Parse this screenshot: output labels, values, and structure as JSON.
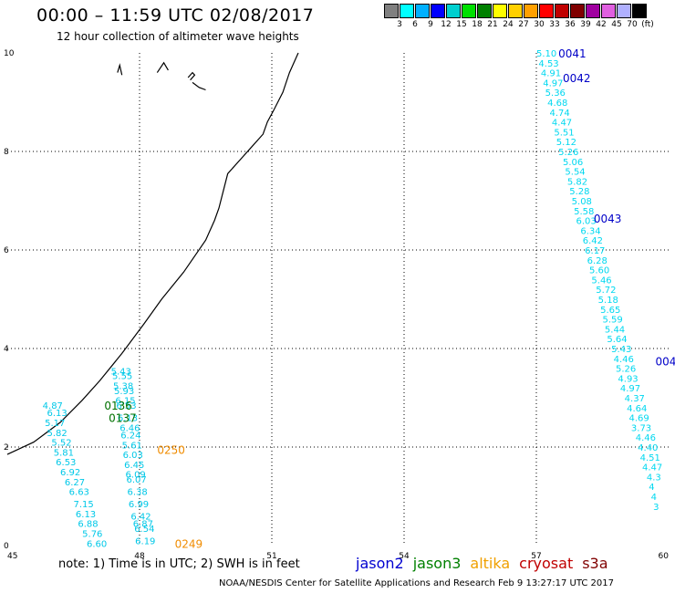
{
  "header": {
    "title": "00:00 – 11:59 UTC 02/08/2017",
    "subtitle": "12 hour collection of altimeter wave heights"
  },
  "legend": {
    "colors": [
      "#808080",
      "#00ffff",
      "#00b0ff",
      "#0000ff",
      "#00d0d0",
      "#00e000",
      "#008000",
      "#ffff00",
      "#ffd000",
      "#ffa000",
      "#ff0000",
      "#c00000",
      "#800000",
      "#a000a0",
      "#e060e0",
      "#b0b0ff",
      "#000000"
    ],
    "labels": [
      "3",
      "6",
      "9",
      "12",
      "15",
      "18",
      "21",
      "24",
      "27",
      "30",
      "33",
      "36",
      "39",
      "42",
      "45",
      "70",
      "(ft)"
    ]
  },
  "axes": {
    "x_ticks": [
      "45",
      "48",
      "51",
      "54",
      "57",
      "60"
    ],
    "y_ticks": [
      "0",
      "2",
      "4",
      "6",
      "8",
      "10"
    ]
  },
  "chart_data": {
    "type": "scatter",
    "xlim": [
      45,
      60
    ],
    "ylim": [
      0,
      10
    ],
    "coastline": [
      [
        45,
        1.85
      ],
      [
        45.6,
        2.1
      ],
      [
        46.2,
        2.5
      ],
      [
        46.7,
        2.95
      ],
      [
        47.1,
        3.35
      ],
      [
        47.6,
        3.9
      ],
      [
        48.1,
        4.5
      ],
      [
        48.5,
        5.0
      ],
      [
        49.0,
        5.55
      ],
      [
        49.5,
        6.2
      ],
      [
        49.7,
        6.6
      ],
      [
        49.8,
        6.85
      ],
      [
        49.9,
        7.2
      ],
      [
        50.0,
        7.55
      ],
      [
        50.3,
        7.85
      ],
      [
        50.5,
        8.05
      ],
      [
        50.8,
        8.35
      ],
      [
        50.9,
        8.6
      ],
      [
        51.05,
        8.85
      ],
      [
        51.25,
        9.2
      ],
      [
        51.4,
        9.6
      ],
      [
        51.55,
        9.9
      ],
      [
        51.6,
        10
      ]
    ],
    "islands": [
      [
        [
          47.5,
          9.6
        ],
        [
          47.55,
          9.75
        ],
        [
          47.6,
          9.55
        ]
      ],
      [
        [
          48.4,
          9.6
        ],
        [
          48.55,
          9.8
        ],
        [
          48.65,
          9.65
        ]
      ],
      [
        [
          49.1,
          9.5
        ],
        [
          49.2,
          9.6
        ],
        [
          49.25,
          9.55
        ],
        [
          49.15,
          9.45
        ]
      ],
      [
        [
          49.2,
          9.4
        ],
        [
          49.35,
          9.3
        ],
        [
          49.5,
          9.25
        ]
      ]
    ],
    "tracks": [
      {
        "name": "jason2",
        "color": "#00d8f0",
        "points": [
          [
            57.0,
            10.0,
            "5.10"
          ],
          [
            57.05,
            9.8,
            "4.53"
          ],
          [
            57.1,
            9.6,
            "4.91"
          ],
          [
            57.15,
            9.4,
            "4.97"
          ],
          [
            57.2,
            9.2,
            "5.36"
          ],
          [
            57.25,
            9.0,
            "4.68"
          ],
          [
            57.3,
            8.8,
            "4.74"
          ],
          [
            57.35,
            8.6,
            "4.47"
          ],
          [
            57.4,
            8.4,
            "5.51"
          ],
          [
            57.45,
            8.2,
            "5.12"
          ],
          [
            57.5,
            8.0,
            "5.26"
          ],
          [
            57.6,
            7.8,
            "5.06"
          ],
          [
            57.65,
            7.6,
            "5.54"
          ],
          [
            57.7,
            7.4,
            "5.82"
          ],
          [
            57.75,
            7.2,
            "5.28"
          ],
          [
            57.8,
            7.0,
            "5.08"
          ],
          [
            57.85,
            6.8,
            "5.58"
          ],
          [
            57.9,
            6.6,
            "6.03"
          ],
          [
            58.0,
            6.4,
            "6.34"
          ],
          [
            58.05,
            6.2,
            "6.42"
          ],
          [
            58.1,
            6.0,
            "6.17"
          ],
          [
            58.15,
            5.8,
            "6.28"
          ],
          [
            58.2,
            5.6,
            "5.60"
          ],
          [
            58.25,
            5.4,
            "5.46"
          ],
          [
            58.35,
            5.2,
            "5.72"
          ],
          [
            58.4,
            5.0,
            "5.18"
          ],
          [
            58.45,
            4.8,
            "5.65"
          ],
          [
            58.5,
            4.6,
            "5.59"
          ],
          [
            58.55,
            4.4,
            "5.44"
          ],
          [
            58.6,
            4.2,
            "5.64"
          ],
          [
            58.7,
            4.0,
            "5.43"
          ],
          [
            58.75,
            3.8,
            "4.46"
          ],
          [
            58.8,
            3.6,
            "5.26"
          ],
          [
            58.85,
            3.4,
            "4.93"
          ],
          [
            58.9,
            3.2,
            "4.97"
          ],
          [
            59.0,
            3.0,
            "4.37"
          ],
          [
            59.05,
            2.8,
            "4.64"
          ],
          [
            59.1,
            2.6,
            "4.69"
          ],
          [
            59.15,
            2.4,
            "3.73"
          ],
          [
            59.25,
            2.2,
            "4.46"
          ],
          [
            59.3,
            2.0,
            "4.40"
          ],
          [
            59.35,
            1.8,
            "4.51"
          ],
          [
            59.4,
            1.6,
            "4.47"
          ],
          [
            59.5,
            1.4,
            "4.3"
          ],
          [
            59.55,
            1.2,
            "4"
          ],
          [
            59.6,
            1.0,
            "4"
          ],
          [
            59.65,
            0.8,
            "3"
          ]
        ]
      },
      {
        "name": "jason3",
        "color": "#00c8e8",
        "points": [
          [
            47.35,
            3.55,
            "5.43"
          ],
          [
            47.38,
            3.45,
            "5.55"
          ],
          [
            47.4,
            3.25,
            "5.38"
          ],
          [
            47.42,
            3.15,
            "5.93"
          ],
          [
            47.45,
            2.95,
            "6.15"
          ],
          [
            47.47,
            2.85,
            "6.53"
          ],
          [
            47.5,
            2.6,
            "6.13"
          ],
          [
            47.55,
            2.4,
            "6.46"
          ],
          [
            47.57,
            2.25,
            "6.24"
          ],
          [
            47.6,
            2.05,
            "5.61"
          ],
          [
            47.62,
            1.85,
            "6.03"
          ],
          [
            47.65,
            1.65,
            "6.45"
          ],
          [
            47.68,
            1.45,
            "6.09"
          ],
          [
            47.7,
            1.35,
            "6.07"
          ],
          [
            47.72,
            1.1,
            "6.38"
          ],
          [
            47.75,
            0.85,
            "6.99"
          ],
          [
            47.8,
            0.6,
            "6.42"
          ],
          [
            47.85,
            0.45,
            "6.87"
          ],
          [
            47.88,
            0.35,
            "6.54"
          ],
          [
            47.9,
            0.1,
            "6.19"
          ]
        ]
      },
      {
        "name": "jason3b",
        "color": "#00c8e8",
        "points": [
          [
            45.8,
            2.85,
            "4.87"
          ],
          [
            45.9,
            2.7,
            "6.13"
          ],
          [
            45.85,
            2.5,
            "5.17"
          ],
          [
            45.9,
            2.3,
            "5.82"
          ],
          [
            46.0,
            2.1,
            "5.52"
          ],
          [
            46.05,
            1.9,
            "5.81"
          ],
          [
            46.1,
            1.7,
            "6.53"
          ],
          [
            46.2,
            1.5,
            "6.92"
          ],
          [
            46.3,
            1.3,
            "6.27"
          ],
          [
            46.4,
            1.1,
            "6.63"
          ],
          [
            46.5,
            0.85,
            "7.15"
          ],
          [
            46.55,
            0.65,
            "6.13"
          ],
          [
            46.6,
            0.45,
            "6.88"
          ],
          [
            46.7,
            0.25,
            "5.76"
          ],
          [
            46.8,
            0.05,
            "6.60"
          ]
        ]
      }
    ],
    "pass_labels": [
      {
        "text": "0041",
        "x": 57.5,
        "y": 10.0,
        "color": "#0000c8"
      },
      {
        "text": "0042",
        "x": 57.6,
        "y": 9.5,
        "color": "#0000c8"
      },
      {
        "text": "0043",
        "x": 58.3,
        "y": 6.65,
        "color": "#0000c8"
      },
      {
        "text": "004",
        "x": 59.7,
        "y": 3.75,
        "color": "#0000c8"
      },
      {
        "text": "0136",
        "x": 47.2,
        "y": 2.85,
        "color": "#007000"
      },
      {
        "text": "0137",
        "x": 47.3,
        "y": 2.6,
        "color": "#007000"
      },
      {
        "text": "0250",
        "x": 48.4,
        "y": 1.95,
        "color": "#f08c00"
      },
      {
        "text": "0249",
        "x": 48.8,
        "y": 0.05,
        "color": "#f08c00"
      }
    ]
  },
  "note": "note:  1) Time is in UTC;  2) SWH is in feet",
  "missions": [
    {
      "name": "jason2",
      "color": "#0000d0"
    },
    {
      "name": "jason3",
      "color": "#008000"
    },
    {
      "name": "altika",
      "color": "#f0a000"
    },
    {
      "name": "cryosat",
      "color": "#c00000"
    },
    {
      "name": "s3a",
      "color": "#800000"
    }
  ],
  "footer": "NOAA/NESDIS Center for Satellite Applications and Research    Feb  9 13:27:17 UTC 2017"
}
